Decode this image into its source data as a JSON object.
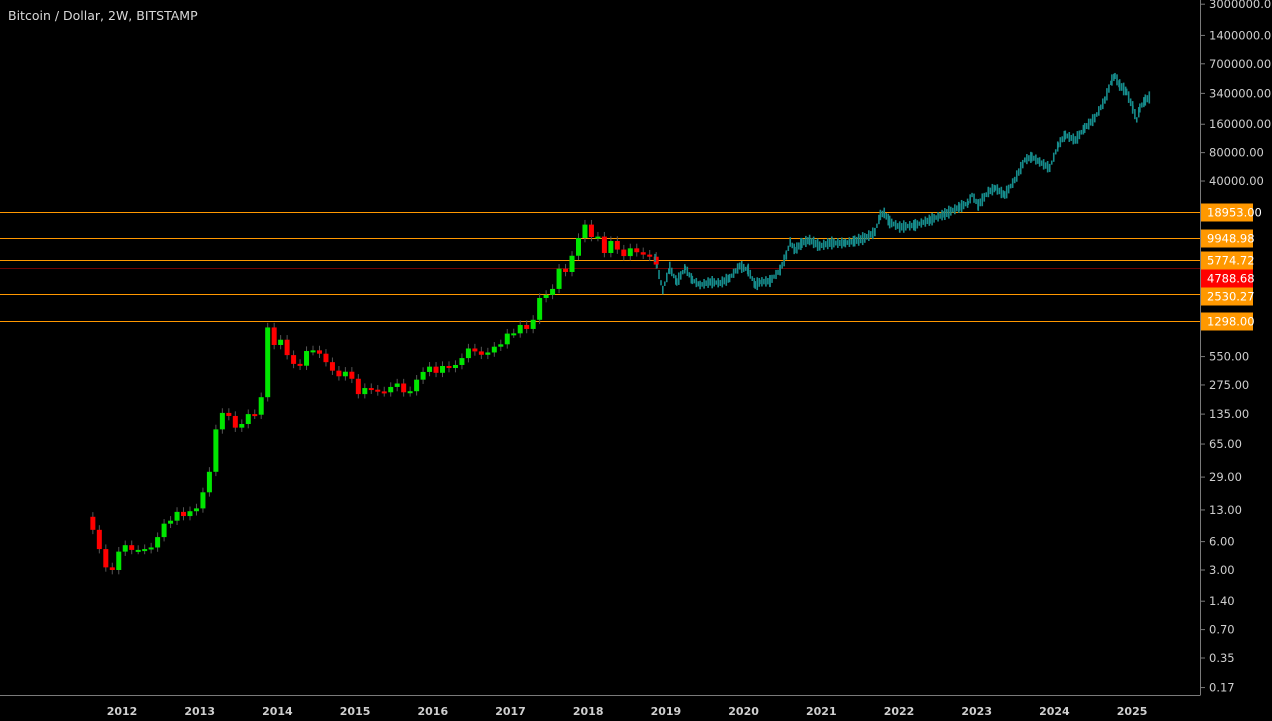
{
  "chart_data": {
    "type": "candlestick",
    "title": "Bitcoin / Dollar, 2W, BITSTAMP",
    "y_scale": "log",
    "ylim": [
      0.15,
      3200000
    ],
    "xlim": [
      2011.0,
      2025.9
    ],
    "grid": false,
    "colors": {
      "up": "#00e600",
      "down": "#ff0000",
      "projection": "#168c8c",
      "level": "#ff9800",
      "current": "#ff0000",
      "current_line": "#6b0000",
      "axis": "#7a7a7a"
    },
    "y_ticks": [
      "3000000.00",
      "1400000.00",
      "700000.00",
      "340000.00",
      "160000.00",
      "80000.00",
      "40000.00",
      "550.00",
      "275.00",
      "135.00",
      "65.00",
      "29.00",
      "13.00",
      "6.00",
      "3.00",
      "1.40",
      "0.70",
      "0.35",
      "0.17"
    ],
    "x_ticks": [
      "2012",
      "2013",
      "2014",
      "2015",
      "2016",
      "2017",
      "2018",
      "2019",
      "2020",
      "2021",
      "2022",
      "2023",
      "2024",
      "2025"
    ],
    "levels": [
      {
        "value": 18953.0,
        "label": "18953.00"
      },
      {
        "value": 9948.98,
        "label": "9948.98"
      },
      {
        "value": 5774.72,
        "label": "5774.72"
      },
      {
        "value": 2530.27,
        "label": "2530.27"
      },
      {
        "value": 1298.0,
        "label": "1298.00"
      }
    ],
    "current_price": {
      "value": 4788.68,
      "label": "4788.68"
    },
    "candles_start": "2011-08",
    "first_open": 11,
    "monthly_closes": [
      8,
      5,
      3.2,
      3,
      4.7,
      5.5,
      4.9,
      4.9,
      5,
      5.2,
      6.7,
      9.3,
      10,
      12.4,
      11.2,
      12.6,
      13.5,
      20,
      33,
      93,
      139,
      129,
      97,
      106,
      135,
      133,
      204,
      1120,
      730,
      830,
      570,
      460,
      440,
      630,
      640,
      590,
      480,
      390,
      340,
      380,
      320,
      220,
      255,
      245,
      235,
      230,
      262,
      285,
      230,
      236,
      313,
      378,
      430,
      370,
      437,
      416,
      448,
      530,
      670,
      624,
      575,
      608,
      700,
      742,
      964,
      970,
      1190,
      1080,
      1350,
      2300,
      2480,
      2870,
      4700,
      4340,
      6450,
      9950,
      13800,
      10200,
      10300,
      6900,
      9250,
      7500,
      6400,
      7730,
      7030,
      6630,
      6300,
      5200
    ],
    "projection": [
      [
        2018.86,
        6110
      ],
      [
        2018.96,
        2790
      ],
      [
        2019.05,
        4790
      ],
      [
        2019.14,
        3400
      ],
      [
        2019.25,
        4790
      ],
      [
        2019.34,
        3570
      ],
      [
        2019.44,
        3160
      ],
      [
        2019.57,
        3400
      ],
      [
        2019.7,
        3320
      ],
      [
        2019.82,
        3740
      ],
      [
        2019.95,
        5020
      ],
      [
        2020.06,
        4550
      ],
      [
        2020.15,
        3160
      ],
      [
        2020.21,
        3400
      ],
      [
        2020.34,
        3480
      ],
      [
        2020.47,
        4550
      ],
      [
        2020.55,
        6560
      ],
      [
        2020.6,
        9020
      ],
      [
        2020.66,
        7420
      ],
      [
        2020.75,
        8810
      ],
      [
        2020.85,
        9470
      ],
      [
        2020.98,
        8190
      ],
      [
        2021.11,
        8810
      ],
      [
        2021.31,
        8810
      ],
      [
        2021.43,
        9250
      ],
      [
        2021.56,
        9960
      ],
      [
        2021.69,
        11500
      ],
      [
        2021.76,
        17460
      ],
      [
        2021.81,
        18330
      ],
      [
        2021.88,
        14700
      ],
      [
        2022.01,
        13000
      ],
      [
        2022.21,
        13650
      ],
      [
        2022.4,
        15450
      ],
      [
        2022.59,
        17870
      ],
      [
        2022.78,
        21200
      ],
      [
        2022.89,
        23400
      ],
      [
        2022.94,
        28440
      ],
      [
        2023.02,
        22290
      ],
      [
        2023.15,
        30600
      ],
      [
        2023.24,
        33750
      ],
      [
        2023.36,
        28440
      ],
      [
        2023.49,
        41000
      ],
      [
        2023.62,
        66900
      ],
      [
        2023.71,
        71970
      ],
      [
        2023.81,
        63700
      ],
      [
        2023.94,
        55000
      ],
      [
        2024.05,
        96300
      ],
      [
        2024.14,
        123000
      ],
      [
        2024.27,
        109000
      ],
      [
        2024.39,
        146000
      ],
      [
        2024.52,
        186000
      ],
      [
        2024.65,
        289000
      ],
      [
        2024.74,
        471000
      ],
      [
        2024.78,
        520000
      ],
      [
        2024.84,
        417000
      ],
      [
        2024.93,
        352000
      ],
      [
        2025.01,
        238000
      ],
      [
        2025.06,
        178000
      ],
      [
        2025.1,
        238000
      ],
      [
        2025.17,
        289000
      ],
      [
        2025.23,
        311000
      ]
    ]
  }
}
